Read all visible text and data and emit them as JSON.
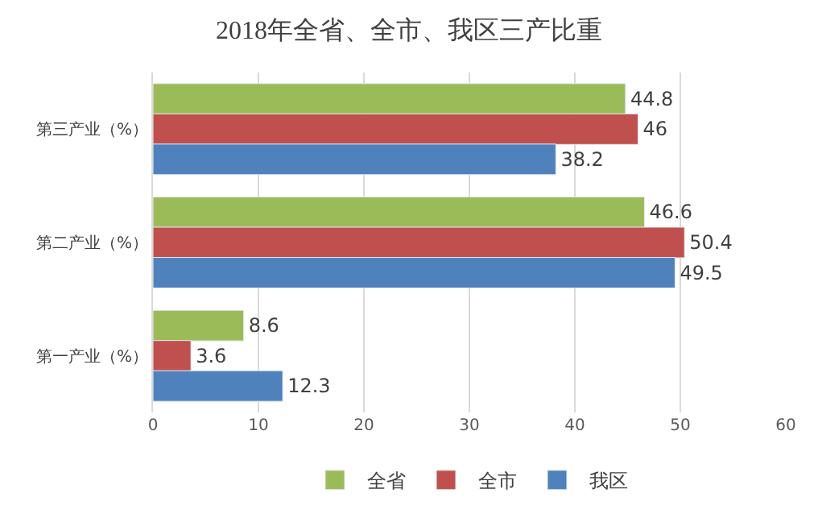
{
  "chart_data": {
    "type": "bar",
    "orientation": "horizontal",
    "title": "2018年全省、全市、我区三产比重",
    "categories": [
      "第三产业（%）",
      "第二产业（%）",
      "第一产业（%）"
    ],
    "series": [
      {
        "name": "全省",
        "color": "#9bbb59",
        "values": [
          44.8,
          46.6,
          8.6
        ]
      },
      {
        "name": "全市",
        "color": "#c0504d",
        "values": [
          46,
          50.4,
          3.6
        ]
      },
      {
        "name": "我区",
        "color": "#4f81bd",
        "values": [
          38.2,
          49.5,
          12.3
        ]
      }
    ],
    "xlim": [
      0,
      60
    ],
    "xticks": [
      0,
      10,
      20,
      30,
      40,
      50,
      60
    ],
    "grid": "x",
    "legend": "bottom",
    "data_labels": true
  }
}
